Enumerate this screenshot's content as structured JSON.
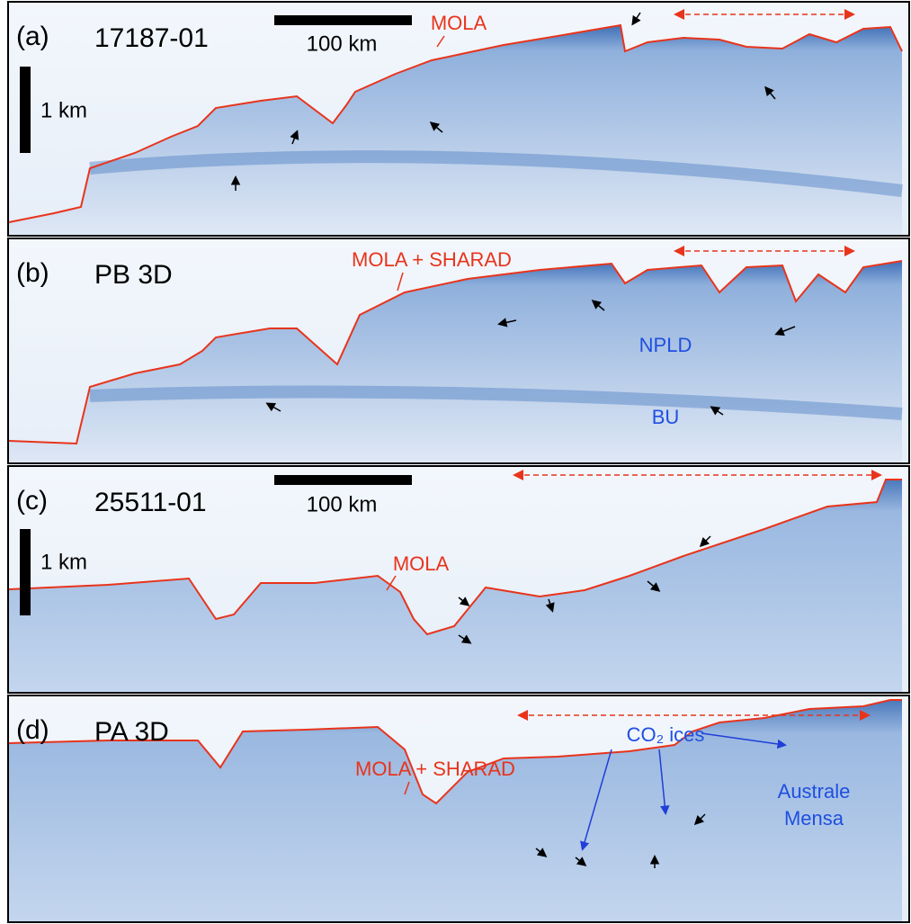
{
  "panels": [
    {
      "label": "(a)",
      "name": "17187-01",
      "scale_bar": "100 km",
      "vertical_bar": "1 km",
      "annotations": [
        "MOLA"
      ]
    },
    {
      "label": "(b)",
      "name": "PB 3D",
      "annotations": [
        "MOLA + SHARAD",
        "NPLD",
        "BU"
      ]
    },
    {
      "label": "(c)",
      "name": "25511-01",
      "scale_bar": "100 km",
      "vertical_bar": "1 km",
      "annotations": [
        "MOLA"
      ]
    },
    {
      "label": "(d)",
      "name": "PA 3D",
      "annotations": [
        "MOLA + SHARAD",
        "CO₂ ices",
        "Australe",
        "Mensa"
      ]
    }
  ]
}
